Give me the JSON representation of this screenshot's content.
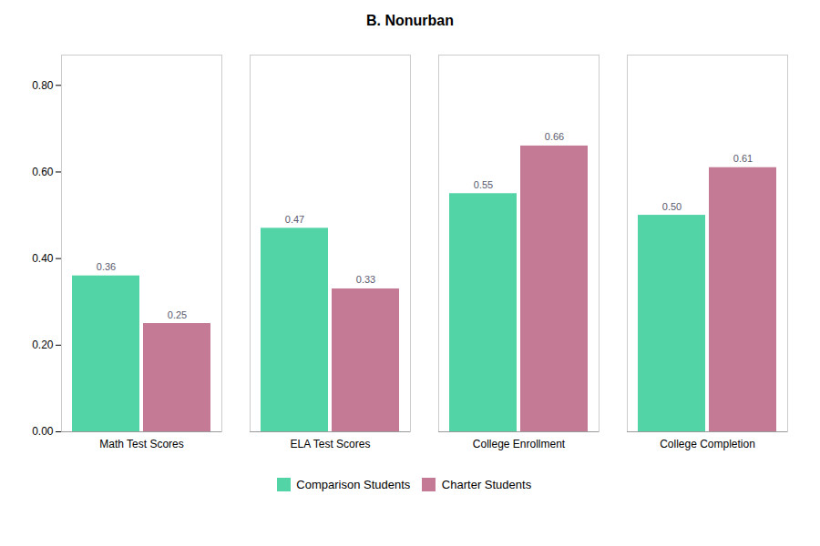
{
  "chart_data": {
    "type": "bar",
    "title": "B. Nonurban",
    "categories": [
      "Math Test Scores",
      "ELA Test Scores",
      "College Enrollment",
      "College Completion"
    ],
    "series": [
      {
        "name": "Comparison Students",
        "color": "#52d4a6",
        "values": [
          0.36,
          0.47,
          0.55,
          0.5
        ],
        "value_labels": [
          "0.36",
          "0.47",
          "0.55",
          "0.50"
        ]
      },
      {
        "name": "Charter Students",
        "color": "#c47a95",
        "values": [
          0.25,
          0.33,
          0.66,
          0.61
        ],
        "value_labels": [
          "0.25",
          "0.33",
          "0.66",
          "0.61"
        ]
      }
    ],
    "ylim": [
      0.0,
      0.87
    ],
    "yticks": [
      {
        "value": 0.0,
        "label": "0.00"
      },
      {
        "value": 0.2,
        "label": "0.20"
      },
      {
        "value": 0.4,
        "label": "0.40"
      },
      {
        "value": 0.6,
        "label": "0.60"
      },
      {
        "value": 0.8,
        "label": "0.80"
      }
    ],
    "data_labels": true,
    "grid": false,
    "legend": "bottom"
  }
}
